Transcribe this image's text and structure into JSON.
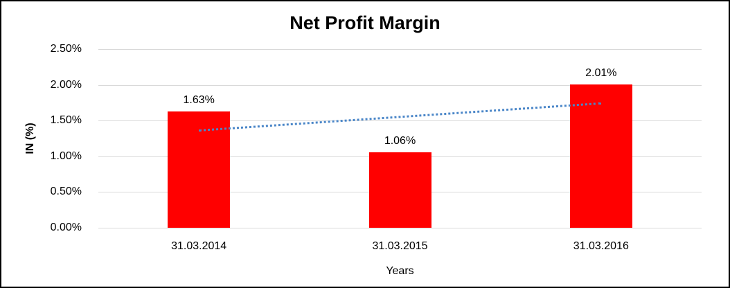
{
  "chart_data": {
    "type": "bar",
    "title": "Net Profit Margin",
    "xlabel": "Years",
    "ylabel": "IN (%)",
    "categories": [
      "31.03.2014",
      "31.03.2015",
      "31.03.2016"
    ],
    "values": [
      1.63,
      1.06,
      2.01
    ],
    "data_labels": [
      "1.63%",
      "1.06%",
      "2.01%"
    ],
    "y_ticks": [
      "0.00%",
      "0.50%",
      "1.00%",
      "1.50%",
      "2.00%",
      "2.50%"
    ],
    "y_tick_values": [
      0,
      0.5,
      1.0,
      1.5,
      2.0,
      2.5
    ],
    "ylim": [
      0,
      2.5
    ],
    "grid": true,
    "legend": "none",
    "bar_color": "#FF0000",
    "grid_color": "#D9D9D9",
    "trendline": {
      "type": "linear",
      "style": "dotted",
      "color": "#4A86C8",
      "start_value": 1.377,
      "end_value": 1.757
    }
  }
}
